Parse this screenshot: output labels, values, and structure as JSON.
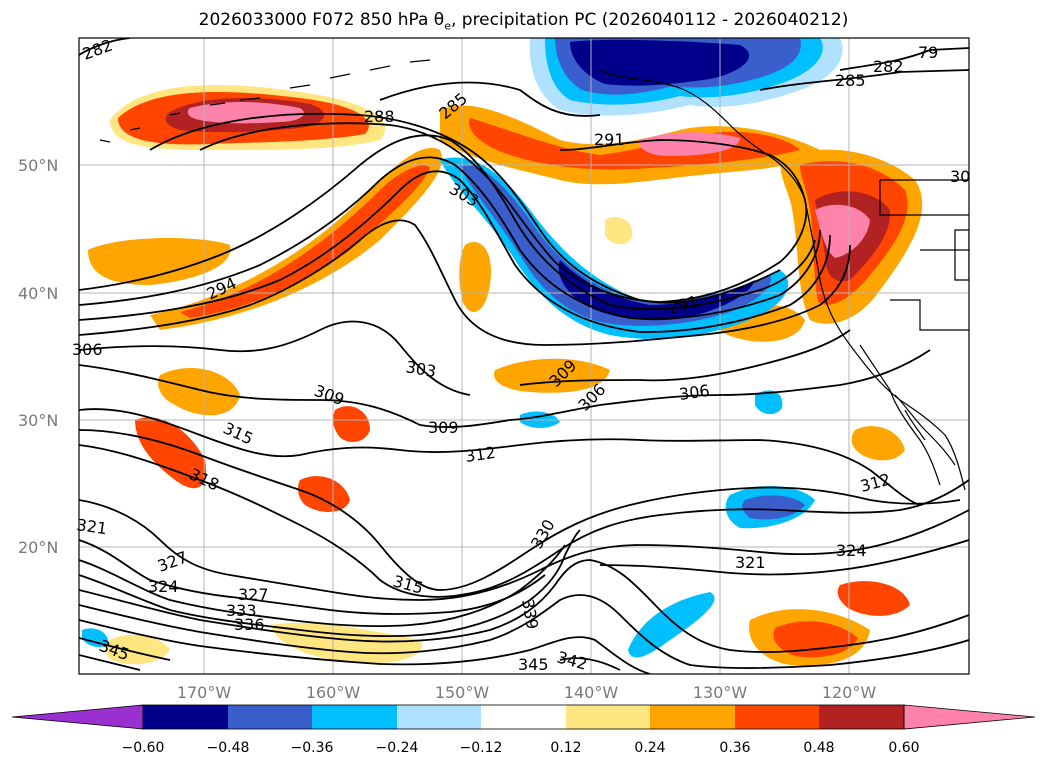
{
  "title": {
    "prefix": "2026033000 F072 850 hPa θ",
    "subscript": "e",
    "suffix": ", precipitation PC (2026040112 - 2026040212)"
  },
  "axes": {
    "longitude_ticks": [
      "170°W",
      "160°W",
      "150°W",
      "140°W",
      "130°W",
      "120°W"
    ],
    "latitude_ticks": [
      "50°N",
      "40°N",
      "30°N",
      "20°N"
    ]
  },
  "contour_labels": [
    "282",
    "285",
    "288",
    "291",
    "294",
    "303",
    "306",
    "309",
    "312",
    "315",
    "318",
    "321",
    "324",
    "327",
    "330",
    "333",
    "336",
    "339",
    "342",
    "345"
  ],
  "colorbar": {
    "tick_labels": [
      "−0.60",
      "−0.48",
      "−0.36",
      "−0.24",
      "−0.12",
      "0.12",
      "0.24",
      "0.36",
      "0.48",
      "0.60"
    ],
    "colors": {
      "under": "#9b30d0",
      "n060": "#00008b",
      "n048": "#3a5fcd",
      "n036": "#00bfff",
      "n024": "#b0e2ff",
      "zero": "#ffffff",
      "p012": "#ffe680",
      "p024": "#ffa500",
      "p036": "#ff4500",
      "p048": "#b22222",
      "over": "#ff82ab"
    }
  }
}
